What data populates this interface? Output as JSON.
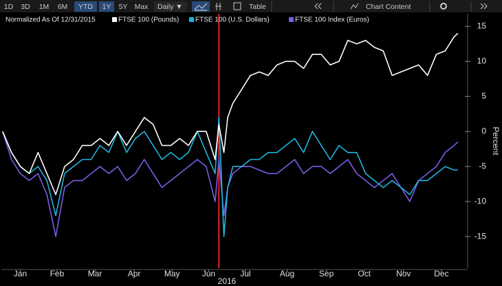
{
  "toolbar": {
    "ranges": [
      "1D",
      "3D",
      "1M",
      "6M",
      "YTD",
      "1Y",
      "5Y",
      "Max"
    ],
    "active": [
      "YTD",
      "1Y"
    ],
    "frequency": "Daily ▼",
    "table": "Table",
    "content": "Chart Content"
  },
  "chart_data": {
    "type": "line",
    "subtitle": "Normalized As Of 12/31/2015",
    "xlabel": "2016",
    "ylabel": "Percent",
    "x": [
      1,
      8,
      15,
      22,
      29,
      36,
      43,
      50,
      57,
      64,
      71,
      78,
      85,
      92,
      99,
      106,
      113,
      120,
      127,
      134,
      141,
      148,
      155,
      162,
      169,
      172,
      176,
      179,
      183,
      190,
      197,
      204,
      211,
      218,
      225,
      232,
      239,
      246,
      253,
      260,
      267,
      274,
      281,
      288,
      295,
      302,
      309,
      316,
      323,
      330,
      337,
      344,
      351,
      358,
      361
    ],
    "xlim": [
      0,
      366
    ],
    "xticks": [
      {
        "value": 15,
        "label": "Jan"
      },
      {
        "value": 44,
        "label": "Feb"
      },
      {
        "value": 74,
        "label": "Mar"
      },
      {
        "value": 105,
        "label": "Apr"
      },
      {
        "value": 135,
        "label": "May"
      },
      {
        "value": 164,
        "label": "Jun"
      },
      {
        "value": 193,
        "label": "Jul"
      },
      {
        "value": 226,
        "label": "Aug"
      },
      {
        "value": 257,
        "label": "Sep"
      },
      {
        "value": 287,
        "label": "Oct"
      },
      {
        "value": 318,
        "label": "Nov"
      },
      {
        "value": 348,
        "label": "Dec"
      }
    ],
    "ylim": [
      -19.5,
      16.8
    ],
    "yticks": [
      15,
      10,
      5,
      0,
      -5,
      -10,
      -15
    ],
    "vline": {
      "x": 172,
      "color": "#e02424"
    },
    "series": [
      {
        "name": "FTSE 100 (Pounds)",
        "color": "#ffffff",
        "values": [
          0,
          -3,
          -5,
          -6,
          -3,
          -6,
          -9,
          -5,
          -4,
          -2,
          -2,
          -1,
          -2,
          0,
          -2,
          0,
          2,
          1,
          -2,
          -2,
          -1,
          -2,
          0,
          0,
          -4,
          1,
          -3,
          2,
          4,
          6,
          8,
          8.5,
          8,
          9.5,
          10,
          10,
          9,
          11,
          11,
          9.5,
          10,
          13,
          12.5,
          13,
          12,
          11.5,
          8,
          8.5,
          9,
          9.5,
          8,
          11,
          11.5,
          13.5,
          14
        ]
      },
      {
        "name": "FTSE 100 (U.S. Dollars)",
        "color": "#1fb5e0",
        "values": [
          0,
          -3,
          -5,
          -6,
          -5,
          -7,
          -12,
          -6,
          -5,
          -4,
          -4,
          -2,
          -3,
          0,
          -3,
          -1,
          0,
          -2,
          -4,
          -3,
          -4,
          -3,
          0,
          -3,
          -6,
          2,
          -15,
          -8,
          -5,
          -5,
          -4,
          -4,
          -3,
          -3,
          -2,
          -1,
          -3,
          0,
          -2,
          -4,
          -2,
          -3,
          -3,
          -6,
          -7,
          -8,
          -7,
          -8,
          -9,
          -7,
          -7,
          -6,
          -5,
          -5.5,
          -5.5
        ]
      },
      {
        "name": "FTSE 100 Index (Euros)",
        "color": "#7b5ce6",
        "values": [
          0,
          -4,
          -6,
          -7,
          -6,
          -9,
          -15,
          -8,
          -7,
          -7,
          -6,
          -5,
          -6,
          -5,
          -7,
          -6,
          -4,
          -6,
          -8,
          -7,
          -6,
          -5,
          -4,
          -5,
          -10,
          -4,
          -12,
          -8,
          -6,
          -5,
          -5,
          -5.5,
          -6,
          -6,
          -5,
          -4,
          -6,
          -5,
          -5,
          -6,
          -5,
          -4,
          -6,
          -7,
          -8,
          -7,
          -6,
          -8,
          -10,
          -7,
          -6,
          -5,
          -3,
          -2,
          -1.5
        ]
      }
    ]
  }
}
